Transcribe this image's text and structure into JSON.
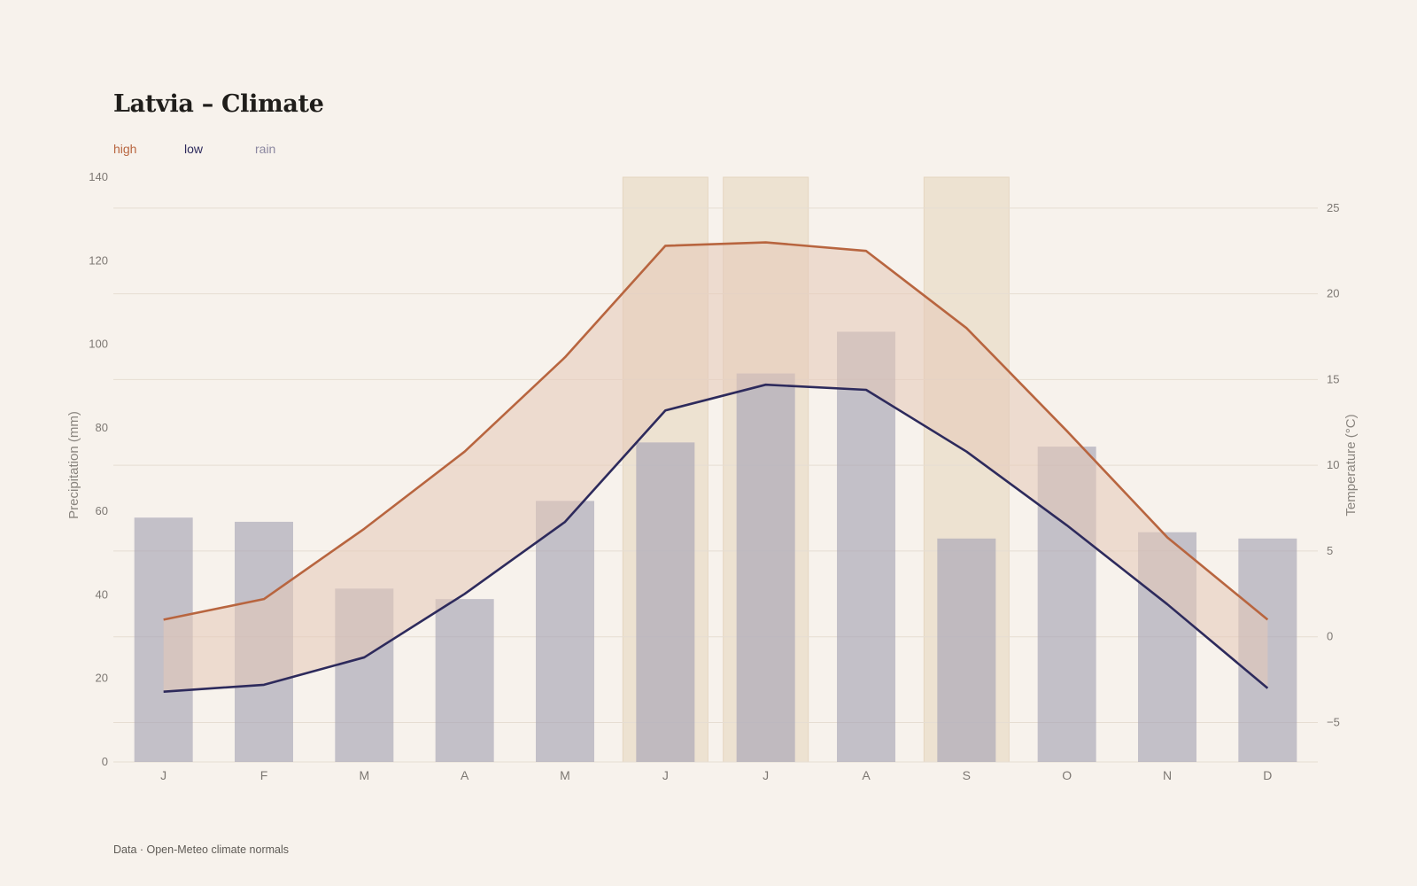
{
  "title": "Latvia – Climate",
  "legend": {
    "high": "high",
    "low": "low",
    "rain": "rain"
  },
  "footer": "Data · Open-Meteo climate normals",
  "colors": {
    "background": "#f7f2ec",
    "high": "#b8653f",
    "low": "#2d2a5c",
    "rain": "#a8a4b6",
    "band": "#e6c9b8",
    "highlight": "#eadcc8",
    "grid": "#e6ddd2"
  },
  "chart_data": {
    "type": "bar+line",
    "categories": [
      "J",
      "F",
      "M",
      "A",
      "M",
      "J",
      "J",
      "A",
      "S",
      "O",
      "N",
      "D"
    ],
    "left_axis": {
      "label": "Precipitation (mm)",
      "ylim": [
        0,
        140
      ],
      "ticks": [
        0,
        20,
        40,
        60,
        80,
        100,
        120,
        140
      ]
    },
    "right_axis": {
      "label": "Temperature (°C)",
      "ylim": [
        -7.3,
        26.8
      ],
      "ticks": [
        -5,
        0,
        5,
        10,
        15,
        20,
        25
      ],
      "tick_labels": [
        "−5",
        "0",
        "5",
        "10",
        "15",
        "20",
        "25"
      ]
    },
    "grid": true,
    "series": [
      {
        "name": "rain",
        "type": "bar",
        "axis": "left",
        "values": [
          58.5,
          57.5,
          41.5,
          39,
          62.5,
          76.5,
          93,
          103,
          53.5,
          75.5,
          55,
          53.5
        ]
      },
      {
        "name": "high",
        "type": "line",
        "axis": "right",
        "values": [
          1.0,
          2.2,
          6.3,
          10.8,
          16.3,
          22.8,
          23.0,
          22.5,
          18.0,
          12.0,
          5.8,
          1.0
        ]
      },
      {
        "name": "low",
        "type": "line",
        "axis": "right",
        "values": [
          -3.2,
          -2.8,
          -1.2,
          2.5,
          6.7,
          13.2,
          14.7,
          14.4,
          10.8,
          6.5,
          1.9,
          -3.0
        ]
      }
    ],
    "highlighted_months": [
      5,
      6,
      8
    ]
  }
}
